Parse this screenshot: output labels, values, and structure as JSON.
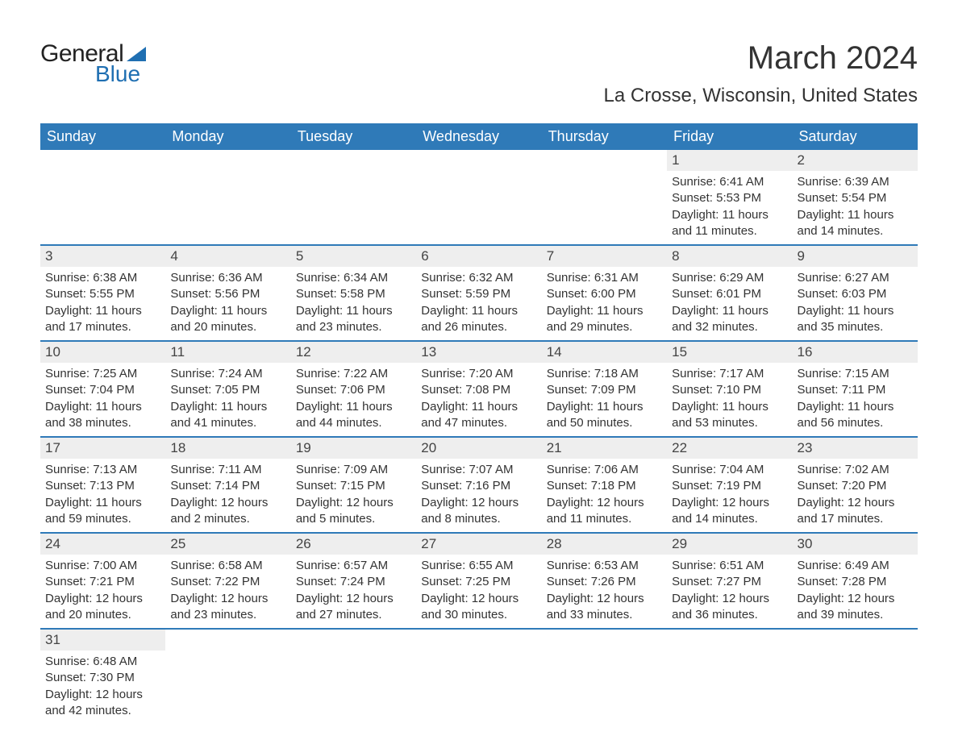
{
  "logo": {
    "general": "General",
    "blue": "Blue"
  },
  "title": "March 2024",
  "location": "La Crosse, Wisconsin, United States",
  "colors": {
    "header_bg": "#2f7ab8",
    "header_text": "#ffffff",
    "daynum_bg": "#eeeeee",
    "row_border": "#2f7ab8",
    "text": "#333333",
    "logo_blue": "#1f6fb2"
  },
  "weekdays": [
    "Sunday",
    "Monday",
    "Tuesday",
    "Wednesday",
    "Thursday",
    "Friday",
    "Saturday"
  ],
  "weeks": [
    [
      null,
      null,
      null,
      null,
      null,
      {
        "n": "1",
        "sunrise": "Sunrise: 6:41 AM",
        "sunset": "Sunset: 5:53 PM",
        "day1": "Daylight: 11 hours",
        "day2": "and 11 minutes."
      },
      {
        "n": "2",
        "sunrise": "Sunrise: 6:39 AM",
        "sunset": "Sunset: 5:54 PM",
        "day1": "Daylight: 11 hours",
        "day2": "and 14 minutes."
      }
    ],
    [
      {
        "n": "3",
        "sunrise": "Sunrise: 6:38 AM",
        "sunset": "Sunset: 5:55 PM",
        "day1": "Daylight: 11 hours",
        "day2": "and 17 minutes."
      },
      {
        "n": "4",
        "sunrise": "Sunrise: 6:36 AM",
        "sunset": "Sunset: 5:56 PM",
        "day1": "Daylight: 11 hours",
        "day2": "and 20 minutes."
      },
      {
        "n": "5",
        "sunrise": "Sunrise: 6:34 AM",
        "sunset": "Sunset: 5:58 PM",
        "day1": "Daylight: 11 hours",
        "day2": "and 23 minutes."
      },
      {
        "n": "6",
        "sunrise": "Sunrise: 6:32 AM",
        "sunset": "Sunset: 5:59 PM",
        "day1": "Daylight: 11 hours",
        "day2": "and 26 minutes."
      },
      {
        "n": "7",
        "sunrise": "Sunrise: 6:31 AM",
        "sunset": "Sunset: 6:00 PM",
        "day1": "Daylight: 11 hours",
        "day2": "and 29 minutes."
      },
      {
        "n": "8",
        "sunrise": "Sunrise: 6:29 AM",
        "sunset": "Sunset: 6:01 PM",
        "day1": "Daylight: 11 hours",
        "day2": "and 32 minutes."
      },
      {
        "n": "9",
        "sunrise": "Sunrise: 6:27 AM",
        "sunset": "Sunset: 6:03 PM",
        "day1": "Daylight: 11 hours",
        "day2": "and 35 minutes."
      }
    ],
    [
      {
        "n": "10",
        "sunrise": "Sunrise: 7:25 AM",
        "sunset": "Sunset: 7:04 PM",
        "day1": "Daylight: 11 hours",
        "day2": "and 38 minutes."
      },
      {
        "n": "11",
        "sunrise": "Sunrise: 7:24 AM",
        "sunset": "Sunset: 7:05 PM",
        "day1": "Daylight: 11 hours",
        "day2": "and 41 minutes."
      },
      {
        "n": "12",
        "sunrise": "Sunrise: 7:22 AM",
        "sunset": "Sunset: 7:06 PM",
        "day1": "Daylight: 11 hours",
        "day2": "and 44 minutes."
      },
      {
        "n": "13",
        "sunrise": "Sunrise: 7:20 AM",
        "sunset": "Sunset: 7:08 PM",
        "day1": "Daylight: 11 hours",
        "day2": "and 47 minutes."
      },
      {
        "n": "14",
        "sunrise": "Sunrise: 7:18 AM",
        "sunset": "Sunset: 7:09 PM",
        "day1": "Daylight: 11 hours",
        "day2": "and 50 minutes."
      },
      {
        "n": "15",
        "sunrise": "Sunrise: 7:17 AM",
        "sunset": "Sunset: 7:10 PM",
        "day1": "Daylight: 11 hours",
        "day2": "and 53 minutes."
      },
      {
        "n": "16",
        "sunrise": "Sunrise: 7:15 AM",
        "sunset": "Sunset: 7:11 PM",
        "day1": "Daylight: 11 hours",
        "day2": "and 56 minutes."
      }
    ],
    [
      {
        "n": "17",
        "sunrise": "Sunrise: 7:13 AM",
        "sunset": "Sunset: 7:13 PM",
        "day1": "Daylight: 11 hours",
        "day2": "and 59 minutes."
      },
      {
        "n": "18",
        "sunrise": "Sunrise: 7:11 AM",
        "sunset": "Sunset: 7:14 PM",
        "day1": "Daylight: 12 hours",
        "day2": "and 2 minutes."
      },
      {
        "n": "19",
        "sunrise": "Sunrise: 7:09 AM",
        "sunset": "Sunset: 7:15 PM",
        "day1": "Daylight: 12 hours",
        "day2": "and 5 minutes."
      },
      {
        "n": "20",
        "sunrise": "Sunrise: 7:07 AM",
        "sunset": "Sunset: 7:16 PM",
        "day1": "Daylight: 12 hours",
        "day2": "and 8 minutes."
      },
      {
        "n": "21",
        "sunrise": "Sunrise: 7:06 AM",
        "sunset": "Sunset: 7:18 PM",
        "day1": "Daylight: 12 hours",
        "day2": "and 11 minutes."
      },
      {
        "n": "22",
        "sunrise": "Sunrise: 7:04 AM",
        "sunset": "Sunset: 7:19 PM",
        "day1": "Daylight: 12 hours",
        "day2": "and 14 minutes."
      },
      {
        "n": "23",
        "sunrise": "Sunrise: 7:02 AM",
        "sunset": "Sunset: 7:20 PM",
        "day1": "Daylight: 12 hours",
        "day2": "and 17 minutes."
      }
    ],
    [
      {
        "n": "24",
        "sunrise": "Sunrise: 7:00 AM",
        "sunset": "Sunset: 7:21 PM",
        "day1": "Daylight: 12 hours",
        "day2": "and 20 minutes."
      },
      {
        "n": "25",
        "sunrise": "Sunrise: 6:58 AM",
        "sunset": "Sunset: 7:22 PM",
        "day1": "Daylight: 12 hours",
        "day2": "and 23 minutes."
      },
      {
        "n": "26",
        "sunrise": "Sunrise: 6:57 AM",
        "sunset": "Sunset: 7:24 PM",
        "day1": "Daylight: 12 hours",
        "day2": "and 27 minutes."
      },
      {
        "n": "27",
        "sunrise": "Sunrise: 6:55 AM",
        "sunset": "Sunset: 7:25 PM",
        "day1": "Daylight: 12 hours",
        "day2": "and 30 minutes."
      },
      {
        "n": "28",
        "sunrise": "Sunrise: 6:53 AM",
        "sunset": "Sunset: 7:26 PM",
        "day1": "Daylight: 12 hours",
        "day2": "and 33 minutes."
      },
      {
        "n": "29",
        "sunrise": "Sunrise: 6:51 AM",
        "sunset": "Sunset: 7:27 PM",
        "day1": "Daylight: 12 hours",
        "day2": "and 36 minutes."
      },
      {
        "n": "30",
        "sunrise": "Sunrise: 6:49 AM",
        "sunset": "Sunset: 7:28 PM",
        "day1": "Daylight: 12 hours",
        "day2": "and 39 minutes."
      }
    ],
    [
      {
        "n": "31",
        "sunrise": "Sunrise: 6:48 AM",
        "sunset": "Sunset: 7:30 PM",
        "day1": "Daylight: 12 hours",
        "day2": "and 42 minutes."
      },
      null,
      null,
      null,
      null,
      null,
      null
    ]
  ]
}
